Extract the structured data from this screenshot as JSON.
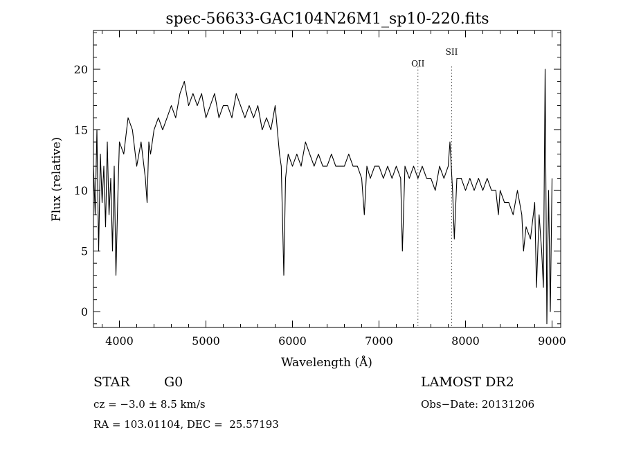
{
  "chart_data": {
    "type": "line",
    "title": "spec-56633-GAC104N26M1_sp10-220.fits",
    "xlabel": "Wavelength (Å)",
    "ylabel": "Flux (relative)",
    "xlim": [
      3700,
      9100
    ],
    "ylim": [
      -1.3,
      23.2
    ],
    "x_ticks": [
      4000,
      5000,
      6000,
      7000,
      8000,
      9000
    ],
    "y_ticks": [
      0,
      5,
      10,
      15,
      20
    ],
    "grid": false,
    "lines": [
      {
        "label": "OII",
        "x": 7450
      },
      {
        "label": "SII",
        "x": 7840
      }
    ],
    "series": [
      {
        "x": [
          3700,
          3720,
          3740,
          3760,
          3780,
          3800,
          3820,
          3840,
          3860,
          3880,
          3900,
          3920,
          3940,
          3960,
          3980,
          4000,
          4050,
          4100,
          4150,
          4200,
          4250,
          4300,
          4320,
          4340,
          4360,
          4400,
          4450,
          4500,
          4550,
          4600,
          4650,
          4700,
          4750,
          4800,
          4850,
          4900,
          4950,
          5000,
          5050,
          5100,
          5150,
          5200,
          5250,
          5300,
          5350,
          5400,
          5450,
          5500,
          5550,
          5600,
          5650,
          5700,
          5750,
          5800,
          5850,
          5870,
          5890,
          5900,
          5920,
          5950,
          6000,
          6050,
          6100,
          6150,
          6200,
          6250,
          6300,
          6350,
          6400,
          6450,
          6500,
          6550,
          6600,
          6650,
          6700,
          6750,
          6800,
          6830,
          6860,
          6900,
          6950,
          7000,
          7050,
          7100,
          7150,
          7200,
          7250,
          7270,
          7300,
          7350,
          7400,
          7450,
          7500,
          7550,
          7600,
          7650,
          7700,
          7750,
          7800,
          7820,
          7850,
          7870,
          7900,
          7950,
          8000,
          8050,
          8100,
          8150,
          8200,
          8250,
          8300,
          8350,
          8380,
          8400,
          8450,
          8500,
          8550,
          8600,
          8650,
          8670,
          8700,
          8750,
          8800,
          8820,
          8850,
          8880,
          8900,
          8920,
          8940,
          8960,
          8980,
          9000
        ],
        "y": [
          12,
          8,
          15,
          5,
          13,
          9,
          12,
          7,
          14,
          8,
          11,
          5,
          12,
          3,
          9,
          14,
          13,
          16,
          15,
          12,
          14,
          11,
          9,
          14,
          13,
          15,
          16,
          15,
          16,
          17,
          16,
          18,
          19,
          17,
          18,
          17,
          18,
          16,
          17,
          18,
          16,
          17,
          17,
          16,
          18,
          17,
          16,
          17,
          16,
          17,
          15,
          16,
          15,
          17,
          13,
          12,
          6,
          3,
          11,
          13,
          12,
          13,
          12,
          14,
          13,
          12,
          13,
          12,
          12,
          13,
          12,
          12,
          12,
          13,
          12,
          12,
          11,
          8,
          12,
          11,
          12,
          12,
          11,
          12,
          11,
          12,
          11,
          5,
          12,
          11,
          12,
          11,
          12,
          11,
          11,
          10,
          12,
          11,
          12,
          14,
          10,
          6,
          11,
          11,
          10,
          11,
          10,
          11,
          10,
          11,
          10,
          10,
          8,
          10,
          9,
          9,
          8,
          10,
          8,
          5,
          7,
          6,
          9,
          2,
          8,
          5,
          2,
          20,
          -1,
          10,
          0,
          11
        ]
      }
    ]
  },
  "info": {
    "object_type": "STAR",
    "subclass": "G0",
    "survey": "LAMOST DR2",
    "cz_text": "cz = −3.0 ± 8.5 km/s",
    "obs_date": "Obs−Date: 20131206",
    "coords": "RA = 103.01104, DEC =  25.57193"
  }
}
